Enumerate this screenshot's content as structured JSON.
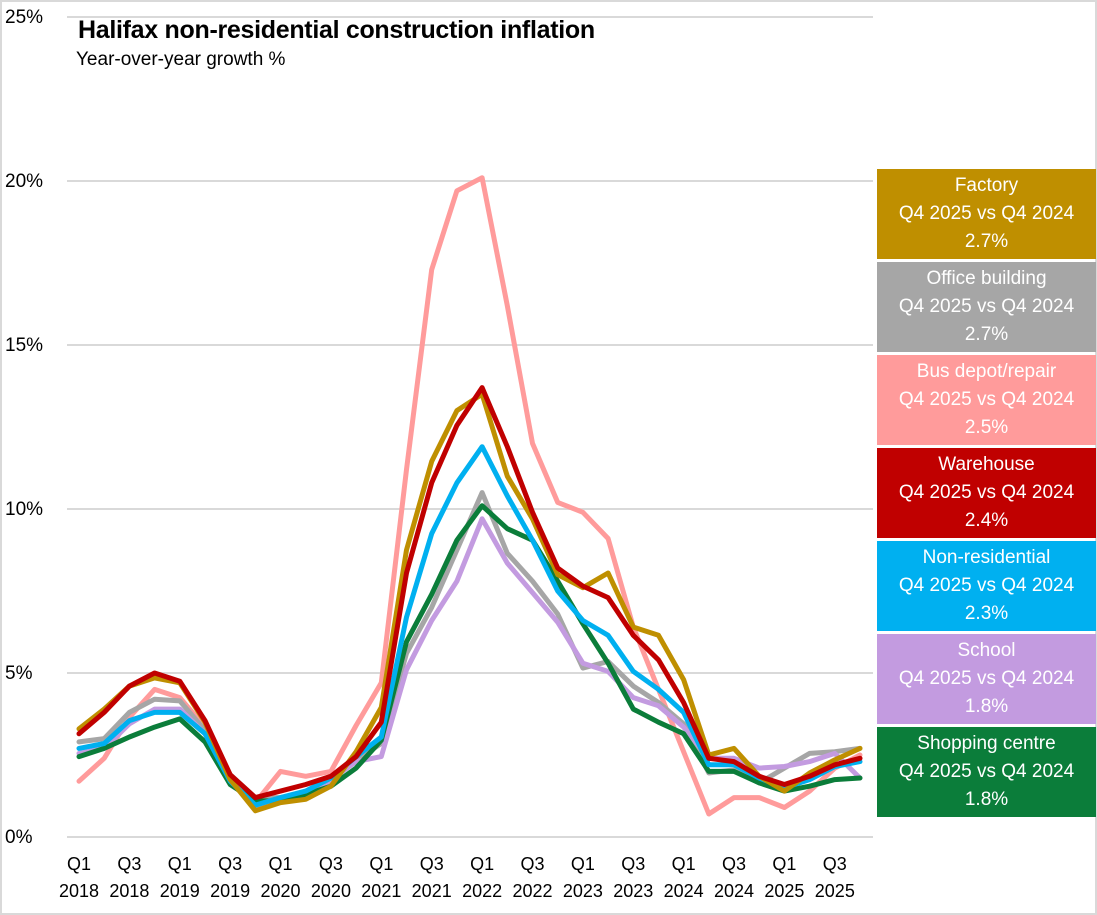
{
  "chart_data": {
    "type": "line",
    "title": "Halifax non-residential construction inflation",
    "subtitle": "Year-over-year growth %",
    "xlabel": "",
    "ylabel": "",
    "ylim": [
      0,
      25
    ],
    "y_ticks": [
      "0%",
      "5%",
      "10%",
      "15%",
      "20%",
      "25%"
    ],
    "y_tick_values": [
      0,
      5,
      10,
      15,
      20,
      25
    ],
    "grid": true,
    "legend_placement": "right",
    "x": [
      "Q1 2018",
      "Q2 2018",
      "Q3 2018",
      "Q4 2018",
      "Q1 2019",
      "Q2 2019",
      "Q3 2019",
      "Q4 2019",
      "Q1 2020",
      "Q2 2020",
      "Q3 2020",
      "Q4 2020",
      "Q1 2021",
      "Q2 2021",
      "Q3 2021",
      "Q4 2021",
      "Q1 2022",
      "Q2 2022",
      "Q3 2022",
      "Q4 2022",
      "Q1 2023",
      "Q2 2023",
      "Q3 2023",
      "Q4 2023",
      "Q1 2024",
      "Q2 2024",
      "Q3 2024",
      "Q4 2024",
      "Q1 2025",
      "Q2 2025",
      "Q3 2025",
      "Q4 2025"
    ],
    "x_tick_labels": [
      {
        "q": "Q1",
        "y": "2018"
      },
      {
        "q": "Q3",
        "y": "2018"
      },
      {
        "q": "Q1",
        "y": "2019"
      },
      {
        "q": "Q3",
        "y": "2019"
      },
      {
        "q": "Q1",
        "y": "2020"
      },
      {
        "q": "Q3",
        "y": "2020"
      },
      {
        "q": "Q1",
        "y": "2021"
      },
      {
        "q": "Q3",
        "y": "2021"
      },
      {
        "q": "Q1",
        "y": "2022"
      },
      {
        "q": "Q3",
        "y": "2022"
      },
      {
        "q": "Q1",
        "y": "2023"
      },
      {
        "q": "Q3",
        "y": "2023"
      },
      {
        "q": "Q1",
        "y": "2024"
      },
      {
        "q": "Q3",
        "y": "2024"
      },
      {
        "q": "Q1",
        "y": "2025"
      },
      {
        "q": "Q3",
        "y": "2025"
      }
    ],
    "series": [
      {
        "name": "Bus depot/repair",
        "color": "#FF9B9B",
        "values": [
          1.7,
          2.4,
          3.65,
          4.5,
          4.25,
          3.35,
          1.85,
          1.05,
          2.0,
          1.85,
          2.0,
          3.4,
          4.7,
          11.2,
          17.3,
          19.7,
          20.1,
          16.2,
          12.0,
          10.2,
          9.9,
          9.1,
          6.4,
          4.5,
          2.6,
          0.7,
          1.2,
          1.2,
          0.9,
          1.4,
          2.1,
          2.5
        ]
      },
      {
        "name": "Office building",
        "color": "#A6A6A6",
        "values": [
          2.9,
          3.0,
          3.8,
          4.2,
          4.15,
          3.25,
          1.9,
          1.2,
          1.2,
          1.35,
          1.7,
          2.35,
          2.85,
          5.6,
          7.0,
          8.75,
          10.5,
          8.65,
          7.8,
          6.8,
          5.15,
          5.35,
          4.6,
          4.1,
          3.45,
          1.95,
          2.05,
          1.65,
          2.1,
          2.55,
          2.6,
          2.7
        ]
      },
      {
        "name": "School",
        "color": "#C39BE0",
        "values": [
          2.55,
          2.7,
          3.45,
          3.9,
          3.9,
          3.15,
          1.7,
          0.9,
          1.07,
          1.2,
          1.75,
          2.3,
          2.45,
          5.1,
          6.6,
          7.8,
          9.7,
          8.35,
          7.45,
          6.55,
          5.3,
          5.05,
          4.25,
          4.0,
          3.35,
          2.4,
          2.4,
          2.1,
          2.15,
          2.3,
          2.55,
          1.8
        ]
      },
      {
        "name": "Shopping centre",
        "color": "#0B7D3A",
        "values": [
          2.45,
          2.7,
          3.05,
          3.35,
          3.6,
          2.9,
          1.6,
          1.1,
          1.1,
          1.3,
          1.55,
          2.1,
          2.95,
          5.95,
          7.4,
          9.05,
          10.1,
          9.4,
          9.05,
          7.8,
          6.5,
          5.3,
          3.9,
          3.5,
          3.15,
          2.0,
          2.0,
          1.65,
          1.4,
          1.55,
          1.75,
          1.8
        ]
      },
      {
        "name": "Non-residential",
        "color": "#00B0F0",
        "values": [
          2.7,
          2.85,
          3.55,
          3.8,
          3.8,
          3.15,
          1.7,
          0.97,
          1.2,
          1.4,
          1.8,
          2.45,
          3.05,
          6.7,
          9.25,
          10.8,
          11.9,
          10.4,
          9.05,
          7.5,
          6.6,
          6.15,
          5.05,
          4.5,
          3.8,
          2.2,
          2.2,
          1.8,
          1.5,
          1.75,
          2.15,
          2.3
        ]
      },
      {
        "name": "Factory",
        "color": "#BF8F00",
        "values": [
          3.3,
          3.9,
          4.6,
          4.85,
          4.7,
          3.5,
          1.75,
          0.8,
          1.05,
          1.15,
          1.55,
          2.6,
          3.95,
          8.75,
          11.45,
          13.0,
          13.5,
          11.0,
          9.7,
          8.0,
          7.6,
          8.05,
          6.4,
          6.15,
          4.8,
          2.5,
          2.7,
          1.85,
          1.4,
          1.95,
          2.35,
          2.7
        ]
      },
      {
        "name": "Warehouse",
        "color": "#C00000",
        "values": [
          3.15,
          3.8,
          4.6,
          5.0,
          4.75,
          3.55,
          1.9,
          1.2,
          1.4,
          1.6,
          1.85,
          2.45,
          3.5,
          8.05,
          10.8,
          12.55,
          13.7,
          11.9,
          9.9,
          8.2,
          7.65,
          7.3,
          6.15,
          5.4,
          4.1,
          2.4,
          2.3,
          1.85,
          1.6,
          1.85,
          2.2,
          2.4
        ]
      }
    ],
    "annotations": [
      {
        "series": "Factory",
        "label": "Factory",
        "comparison": "Q4 2025 vs Q4 2024",
        "value": "2.7%",
        "color": "#BF8F00"
      },
      {
        "series": "Office building",
        "label": "Office building",
        "comparison": "Q4 2025 vs Q4 2024",
        "value": "2.7%",
        "color": "#A6A6A6"
      },
      {
        "series": "Bus depot/repair",
        "label": "Bus depot/repair",
        "comparison": "Q4 2025 vs Q4 2024",
        "value": "2.5%",
        "color": "#FF9B9B"
      },
      {
        "series": "Warehouse",
        "label": "Warehouse",
        "comparison": "Q4 2025 vs Q4 2024",
        "value": "2.4%",
        "color": "#C00000"
      },
      {
        "series": "Non-residential",
        "label": "Non-residential",
        "comparison": "Q4 2025 vs Q4 2024",
        "value": "2.3%",
        "color": "#00B0F0"
      },
      {
        "series": "School",
        "label": "School",
        "comparison": "Q4 2025 vs Q4 2024",
        "value": "1.8%",
        "color": "#C39BE0"
      },
      {
        "series": "Shopping centre",
        "label": "Shopping centre",
        "comparison": "Q4 2025 vs Q4 2024",
        "value": "1.8%",
        "color": "#0B7D3A"
      }
    ]
  }
}
